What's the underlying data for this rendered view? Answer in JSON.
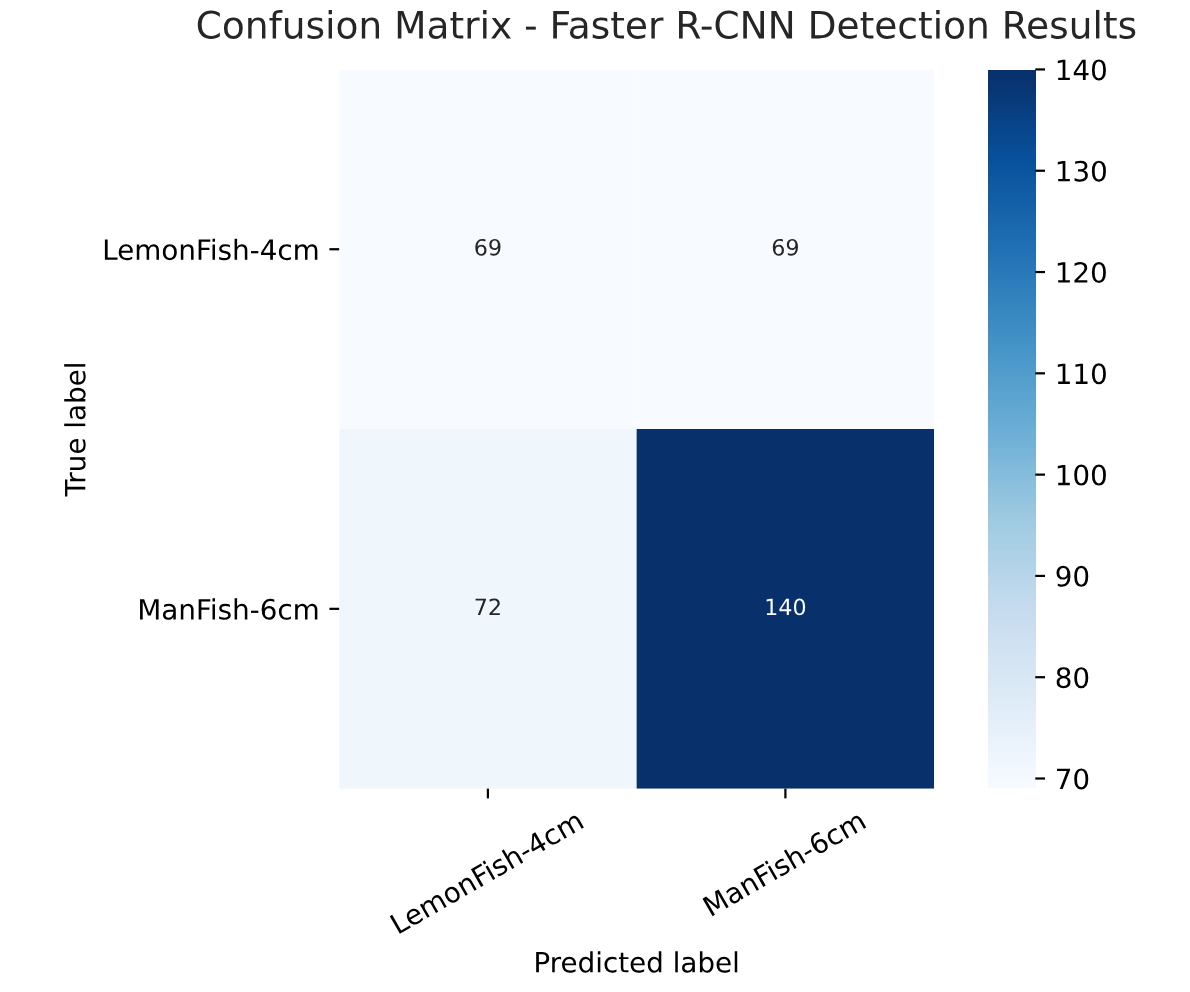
{
  "chart_data": {
    "type": "heatmap",
    "title": "Confusion Matrix - Faster R-CNN Detection Results",
    "xlabel": "Predicted label",
    "ylabel": "True label",
    "categories": [
      "LemonFish-4cm",
      "ManFish-6cm"
    ],
    "y_categories": [
      "LemonFish-4cm",
      "ManFish-6cm"
    ],
    "cells": [
      [
        69,
        69
      ],
      [
        72,
        140
      ]
    ],
    "clim": [
      69,
      140
    ],
    "cticks": [
      70,
      80,
      90,
      100,
      110,
      120,
      130,
      140
    ],
    "data_labels": true
  }
}
